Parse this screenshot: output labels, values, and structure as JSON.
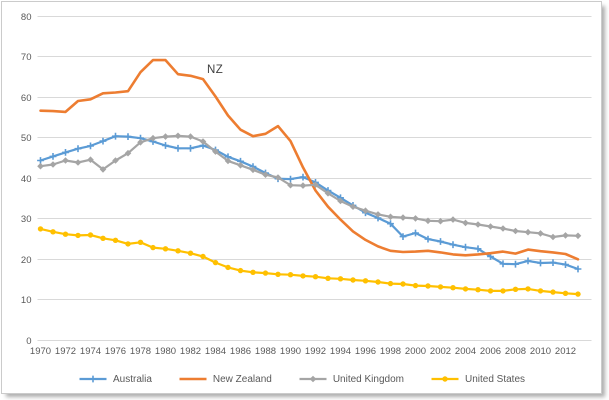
{
  "frame": {
    "background": "#ffffff",
    "border_color": "#cbcbcb"
  },
  "annotation": {
    "text": "NZ",
    "color": "#404040"
  },
  "chart_data": {
    "type": "line",
    "title": "",
    "xlabel": "",
    "ylabel": "",
    "x_start": 1970,
    "x_end": 2013,
    "ylim": [
      0,
      80
    ],
    "y_ticks": [
      0,
      10,
      20,
      30,
      40,
      50,
      60,
      70,
      80
    ],
    "x_tick_labels": [
      "1970",
      "1972",
      "1974",
      "1976",
      "1978",
      "1980",
      "1982",
      "1984",
      "1986",
      "1988",
      "1990",
      "1992",
      "1994",
      "1996",
      "1998",
      "2000",
      "2002",
      "2004",
      "2006",
      "2008",
      "2010",
      "2012"
    ],
    "grid": "horizontal",
    "grid_color": "#d9d9d9",
    "axis_text_color": "#595959",
    "legend_position": "bottom",
    "annotation": {
      "text": "NZ",
      "x_year": 1983.5,
      "y_value": 65
    },
    "series": [
      {
        "name": "Australia",
        "color": "#5b9bd5",
        "marker": "plus",
        "line_width": 2.2,
        "values": [
          44.2,
          45.2,
          46.2,
          47.1,
          47.8,
          49.0,
          50.2,
          50.1,
          49.7,
          48.9,
          47.9,
          47.2,
          47.2,
          47.9,
          46.8,
          45.1,
          44.0,
          42.7,
          41.1,
          39.7,
          39.6,
          40.1,
          38.8,
          36.8,
          35.0,
          33.1,
          31.3,
          30.0,
          28.6,
          25.4,
          26.3,
          24.8,
          24.2,
          23.4,
          22.8,
          22.4,
          20.5,
          18.7,
          18.6,
          19.4,
          18.9,
          19.0,
          18.5,
          17.4
        ]
      },
      {
        "name": "New Zealand",
        "color": "#ed7d31",
        "marker": "none",
        "line_width": 2.6,
        "values": [
          56.5,
          56.4,
          56.2,
          58.9,
          59.3,
          60.8,
          61.0,
          61.3,
          66.0,
          69.0,
          69.0,
          65.5,
          65.1,
          64.3,
          60.0,
          55.3,
          51.8,
          50.2,
          50.8,
          52.7,
          49.0,
          42.5,
          36.8,
          32.8,
          29.6,
          26.7,
          24.6,
          23.0,
          21.9,
          21.6,
          21.7,
          21.9,
          21.5,
          21.0,
          20.8,
          21.0,
          21.3,
          21.7,
          21.2,
          22.2,
          21.8,
          21.5,
          21.1,
          19.8
        ]
      },
      {
        "name": "United Kingdom",
        "color": "#a5a5a5",
        "marker": "diamond",
        "line_width": 2.2,
        "values": [
          42.8,
          43.2,
          44.2,
          43.7,
          44.4,
          42.0,
          44.2,
          46.0,
          48.7,
          49.7,
          50.1,
          50.3,
          50.1,
          48.9,
          46.4,
          44.1,
          43.0,
          41.9,
          40.7,
          40.0,
          38.1,
          38.0,
          38.2,
          36.1,
          34.2,
          32.8,
          31.8,
          30.9,
          30.3,
          30.1,
          29.9,
          29.3,
          29.2,
          29.6,
          28.8,
          28.4,
          27.9,
          27.4,
          26.8,
          26.5,
          26.2,
          25.3,
          25.7,
          25.6
        ]
      },
      {
        "name": "United States",
        "color": "#ffc000",
        "marker": "circle",
        "line_width": 2.2,
        "values": [
          27.3,
          26.6,
          26.0,
          25.7,
          25.8,
          25.0,
          24.5,
          23.6,
          24.0,
          22.7,
          22.4,
          21.9,
          21.3,
          20.5,
          19.0,
          17.8,
          17.0,
          16.6,
          16.4,
          16.1,
          16.0,
          15.7,
          15.5,
          15.1,
          15.0,
          14.7,
          14.5,
          14.2,
          13.8,
          13.7,
          13.3,
          13.2,
          13.0,
          12.8,
          12.5,
          12.3,
          12.0,
          12.0,
          12.4,
          12.5,
          12.0,
          11.7,
          11.4,
          11.2
        ]
      }
    ]
  }
}
